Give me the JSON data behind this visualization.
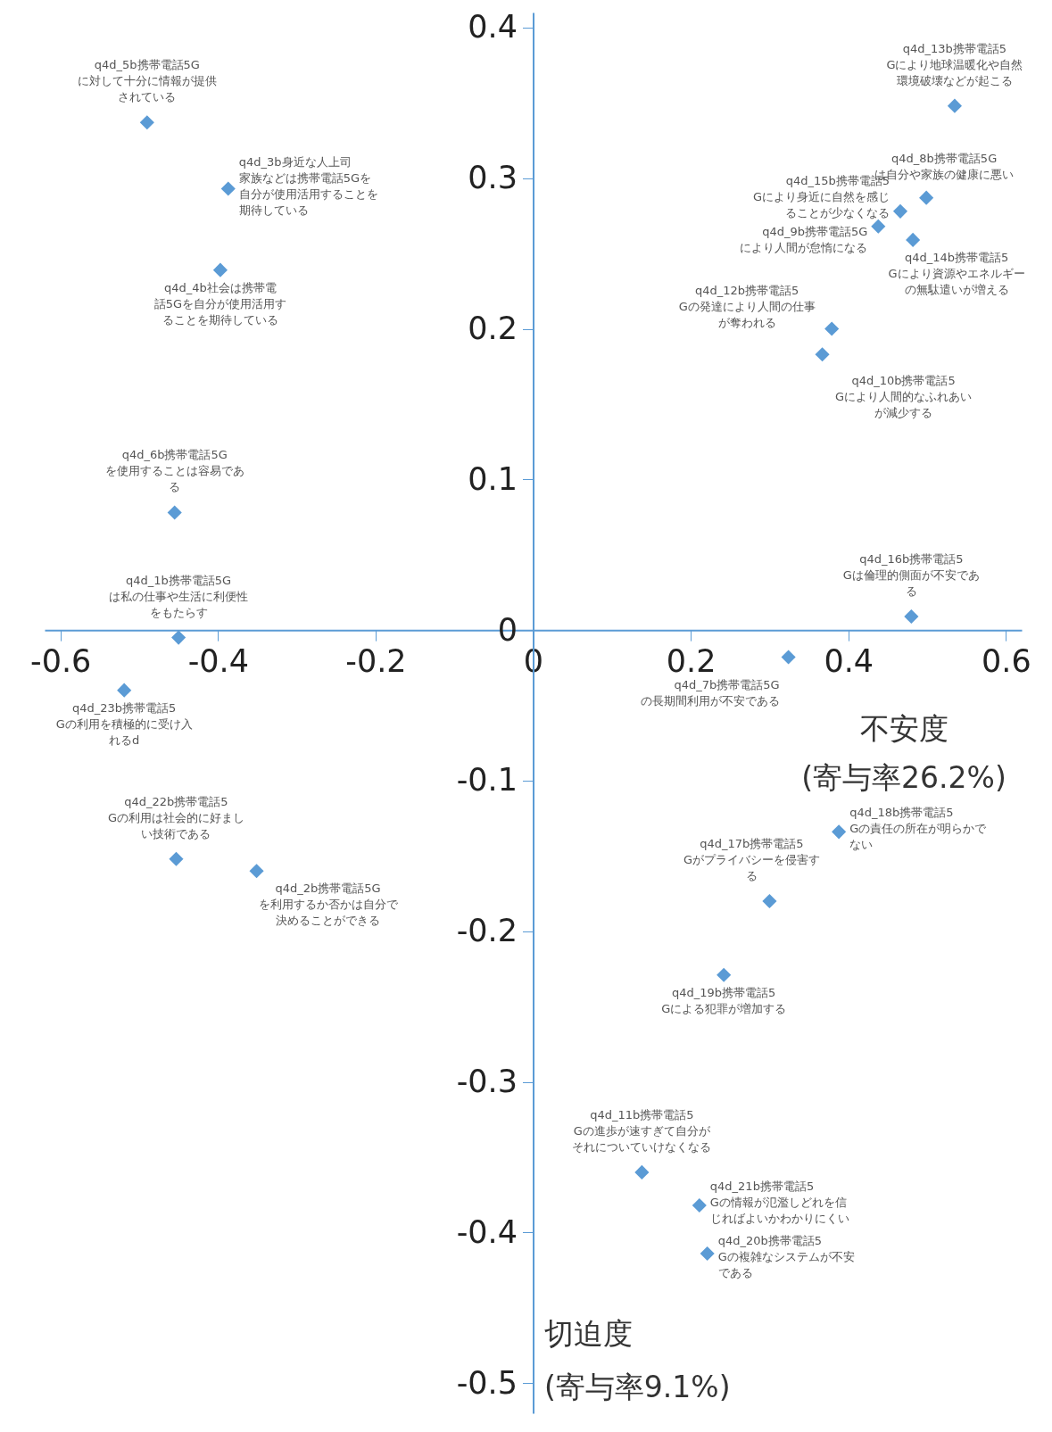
{
  "chart_data": {
    "type": "scatter",
    "xlabel": "不安度 (寄与率26.2%)",
    "ylabel": "切迫度 (寄与率9.1%)",
    "xlim": [
      -0.62,
      0.62
    ],
    "ylim": [
      -0.52,
      0.41
    ],
    "xticks": [
      -0.6,
      -0.4,
      -0.2,
      0,
      0.2,
      0.4,
      0.6
    ],
    "yticks": [
      -0.5,
      -0.4,
      -0.3,
      -0.2,
      -0.1,
      0,
      0.1,
      0.2,
      0.3,
      0.4
    ],
    "grid": false,
    "marker": "diamond",
    "series": [
      {
        "color": "#5b9bd5",
        "x": [
          -0.49,
          -0.387,
          -0.397,
          -0.455,
          -0.45,
          -0.519,
          -0.453,
          -0.351,
          0.535,
          0.499,
          0.466,
          0.438,
          0.482,
          0.379,
          0.367,
          0.48,
          0.324,
          0.388,
          0.3,
          0.242,
          0.138,
          0.211,
          0.221
        ],
        "values": [
          0.337,
          0.293,
          0.239,
          0.078,
          -0.005,
          -0.04,
          -0.152,
          -0.16,
          0.348,
          0.287,
          0.278,
          0.268,
          0.259,
          0.2,
          0.183,
          0.009,
          -0.018,
          -0.134,
          -0.18,
          -0.229,
          -0.36,
          -0.382,
          -0.414
        ]
      }
    ],
    "annotations": [
      {
        "text": "q4d_5b携帯電話5Gに対して十分に情報が提供されている",
        "x": -0.49,
        "y": 0.337
      },
      {
        "text": "q4d_3b身近な人上司家族などは携帯電話5Gを自分が使用活用することを期待している",
        "x": -0.387,
        "y": 0.293
      },
      {
        "text": "q4d_4b社会は携帯電話5Gを自分が使用活用することを期待している",
        "x": -0.397,
        "y": 0.239
      },
      {
        "text": "q4d_6b携帯電話5Gを使用することは容易である",
        "x": -0.455,
        "y": 0.078
      },
      {
        "text": "q4d_1b携帯電話5Gは私の仕事や生活に利便性をもたらす",
        "x": -0.45,
        "y": -0.005
      },
      {
        "text": "q4d_23b携帯電話5Gの利用を積極的に受け入れるd",
        "x": -0.519,
        "y": -0.04
      },
      {
        "text": "q4d_22b携帯電話5Gの利用は社会的に好ましい技術である",
        "x": -0.453,
        "y": -0.152
      },
      {
        "text": "q4d_2b携帯電話5Gを利用するか否かは自分で決めることができる",
        "x": -0.351,
        "y": -0.16
      },
      {
        "text": "q4d_13b携帯電話5Gにより地球温暖化や自然環境破壊などが起こる",
        "x": 0.535,
        "y": 0.348
      },
      {
        "text": "q4d_8b携帯電話5Gは自分や家族の健康に悪い",
        "x": 0.499,
        "y": 0.287
      },
      {
        "text": "q4d_15b携帯電話5Gにより身近に自然を感じることが少なくなる",
        "x": 0.466,
        "y": 0.278
      },
      {
        "text": "q4d_9b携帯電話5Gにより人間が怠惰になる",
        "x": 0.438,
        "y": 0.268
      },
      {
        "text": "q4d_14b携帯電話5Gにより資源やエネルギーの無駄遣いが増える",
        "x": 0.482,
        "y": 0.259
      },
      {
        "text": "q4d_12b携帯電話5Gの発達により人間の仕事が奪われる",
        "x": 0.379,
        "y": 0.2
      },
      {
        "text": "q4d_10b携帯電話5Gにより人間的なふれあいが減少する",
        "x": 0.367,
        "y": 0.183
      },
      {
        "text": "q4d_16b携帯電話5Gは倫理的側面が不安である",
        "x": 0.48,
        "y": 0.009
      },
      {
        "text": "q4d_7b携帯電話5Gの長期間利用が不安である",
        "x": 0.324,
        "y": -0.018
      },
      {
        "text": "q4d_18b携帯電話5Gの責任の所在が明らかでない",
        "x": 0.388,
        "y": -0.134
      },
      {
        "text": "q4d_17b携帯電話5Gがプライバシーを侵害する",
        "x": 0.3,
        "y": -0.18
      },
      {
        "text": "q4d_19b携帯電話5Gによる犯罪が増加する",
        "x": 0.242,
        "y": -0.229
      },
      {
        "text": "q4d_11b携帯電話5Gの進歩が速すぎて自分がそれについていけなくなる",
        "x": 0.138,
        "y": -0.36
      },
      {
        "text": "q4d_21b携帯電話5Gの情報が氾濫しどれを信じればよいかわかりにくい",
        "x": 0.211,
        "y": -0.382
      },
      {
        "text": "q4d_20b携帯電話5Gの複雑なシステムが不安である",
        "x": 0.221,
        "y": -0.414
      }
    ]
  }
}
